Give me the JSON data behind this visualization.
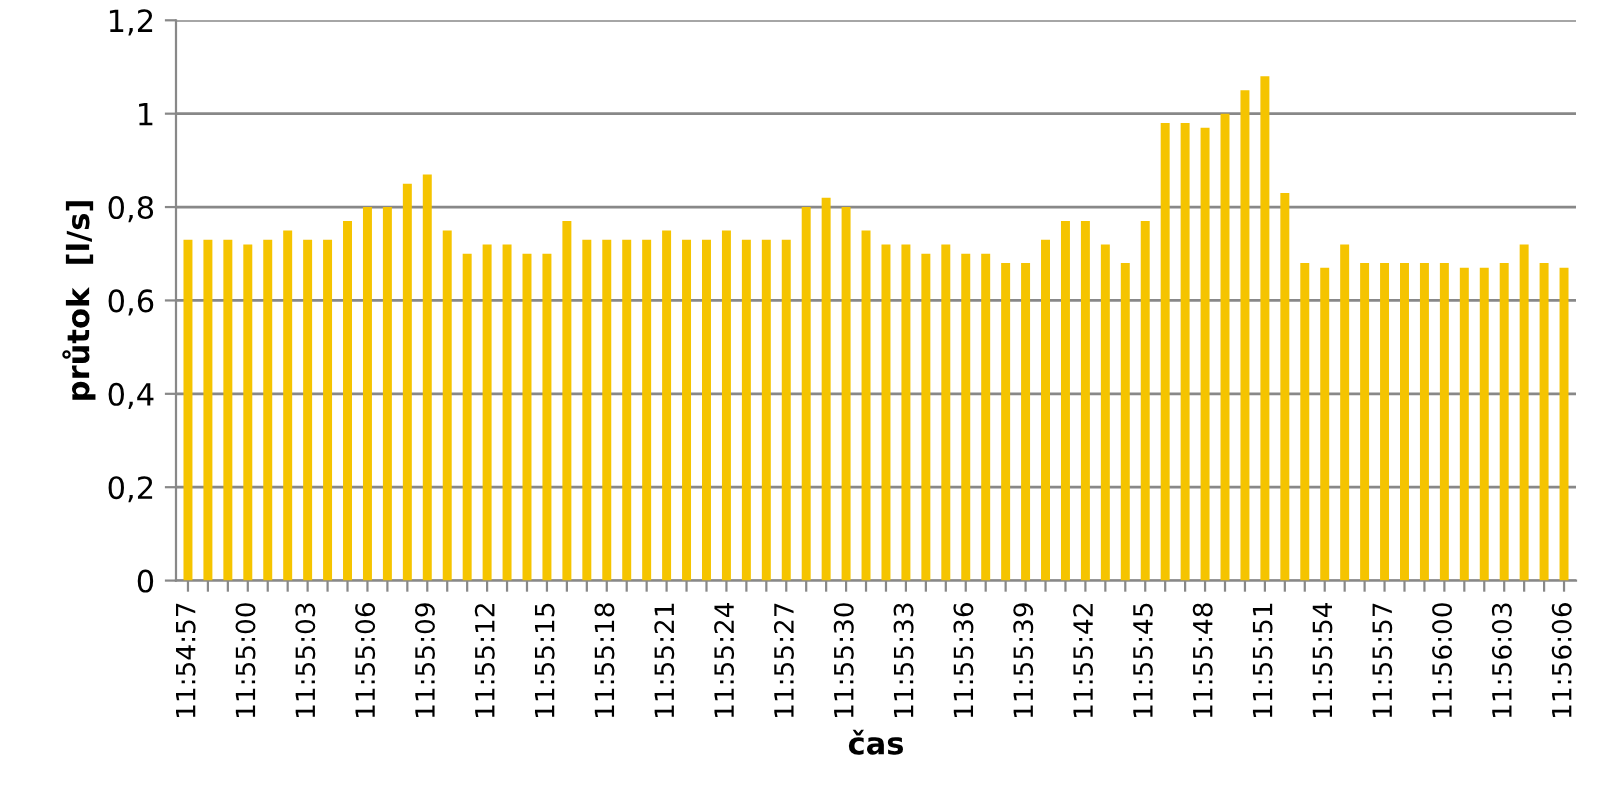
{
  "chart_data": {
    "type": "bar",
    "xlabel": "čas",
    "ylabel": "průtok  [l/s]",
    "categories": [
      "11:54:57",
      null,
      null,
      "11:55:00",
      null,
      null,
      "11:55:03",
      null,
      null,
      "11:55:06",
      null,
      null,
      "11:55:09",
      null,
      null,
      "11:55:12",
      null,
      null,
      "11:55:15",
      null,
      null,
      "11:55:18",
      null,
      null,
      "11:55:21",
      null,
      null,
      "11:55:24",
      null,
      null,
      "11:55:27",
      null,
      null,
      "11:55:30",
      null,
      null,
      "11:55:33",
      null,
      null,
      "11:55:36",
      null,
      null,
      "11:55:39",
      null,
      null,
      "11:55:42",
      null,
      null,
      "11:55:45",
      null,
      null,
      "11:55:48",
      null,
      null,
      "11:55:51",
      null,
      null,
      "11:55:54",
      null,
      null,
      "11:55:57",
      null,
      null,
      "11:56:00",
      null,
      null,
      "11:56:03",
      null,
      null,
      "11:56:06"
    ],
    "values": [
      0.73,
      0.73,
      0.73,
      0.72,
      0.73,
      0.75,
      0.73,
      0.73,
      0.77,
      0.8,
      0.8,
      0.85,
      0.87,
      0.75,
      0.7,
      0.72,
      0.72,
      0.7,
      0.7,
      0.77,
      0.73,
      0.73,
      0.73,
      0.73,
      0.75,
      0.73,
      0.73,
      0.75,
      0.73,
      0.73,
      0.73,
      0.8,
      0.82,
      0.8,
      0.75,
      0.72,
      0.72,
      0.7,
      0.72,
      0.7,
      0.7,
      0.68,
      0.68,
      0.73,
      0.77,
      0.77,
      0.72,
      0.68,
      0.77,
      0.98,
      0.98,
      0.97,
      1.0,
      1.05,
      1.08,
      0.83,
      0.68,
      0.67,
      0.72,
      0.68,
      0.68,
      0.68,
      0.68,
      0.68,
      0.67,
      0.67,
      0.68,
      0.72,
      0.68,
      0.67
    ],
    "color": "#f5c400",
    "ylim": [
      0,
      1.2
    ],
    "yticks": [
      0,
      {
        "value": 0.2,
        "label": "0,2"
      },
      {
        "value": 0.4,
        "label": "0,4"
      },
      {
        "value": 0.6,
        "label": "0,6"
      },
      {
        "value": 0.8,
        "label": "0,8"
      },
      1,
      {
        "value": 1.2,
        "label": "1,2"
      }
    ],
    "grid": "y",
    "legend": false
  }
}
